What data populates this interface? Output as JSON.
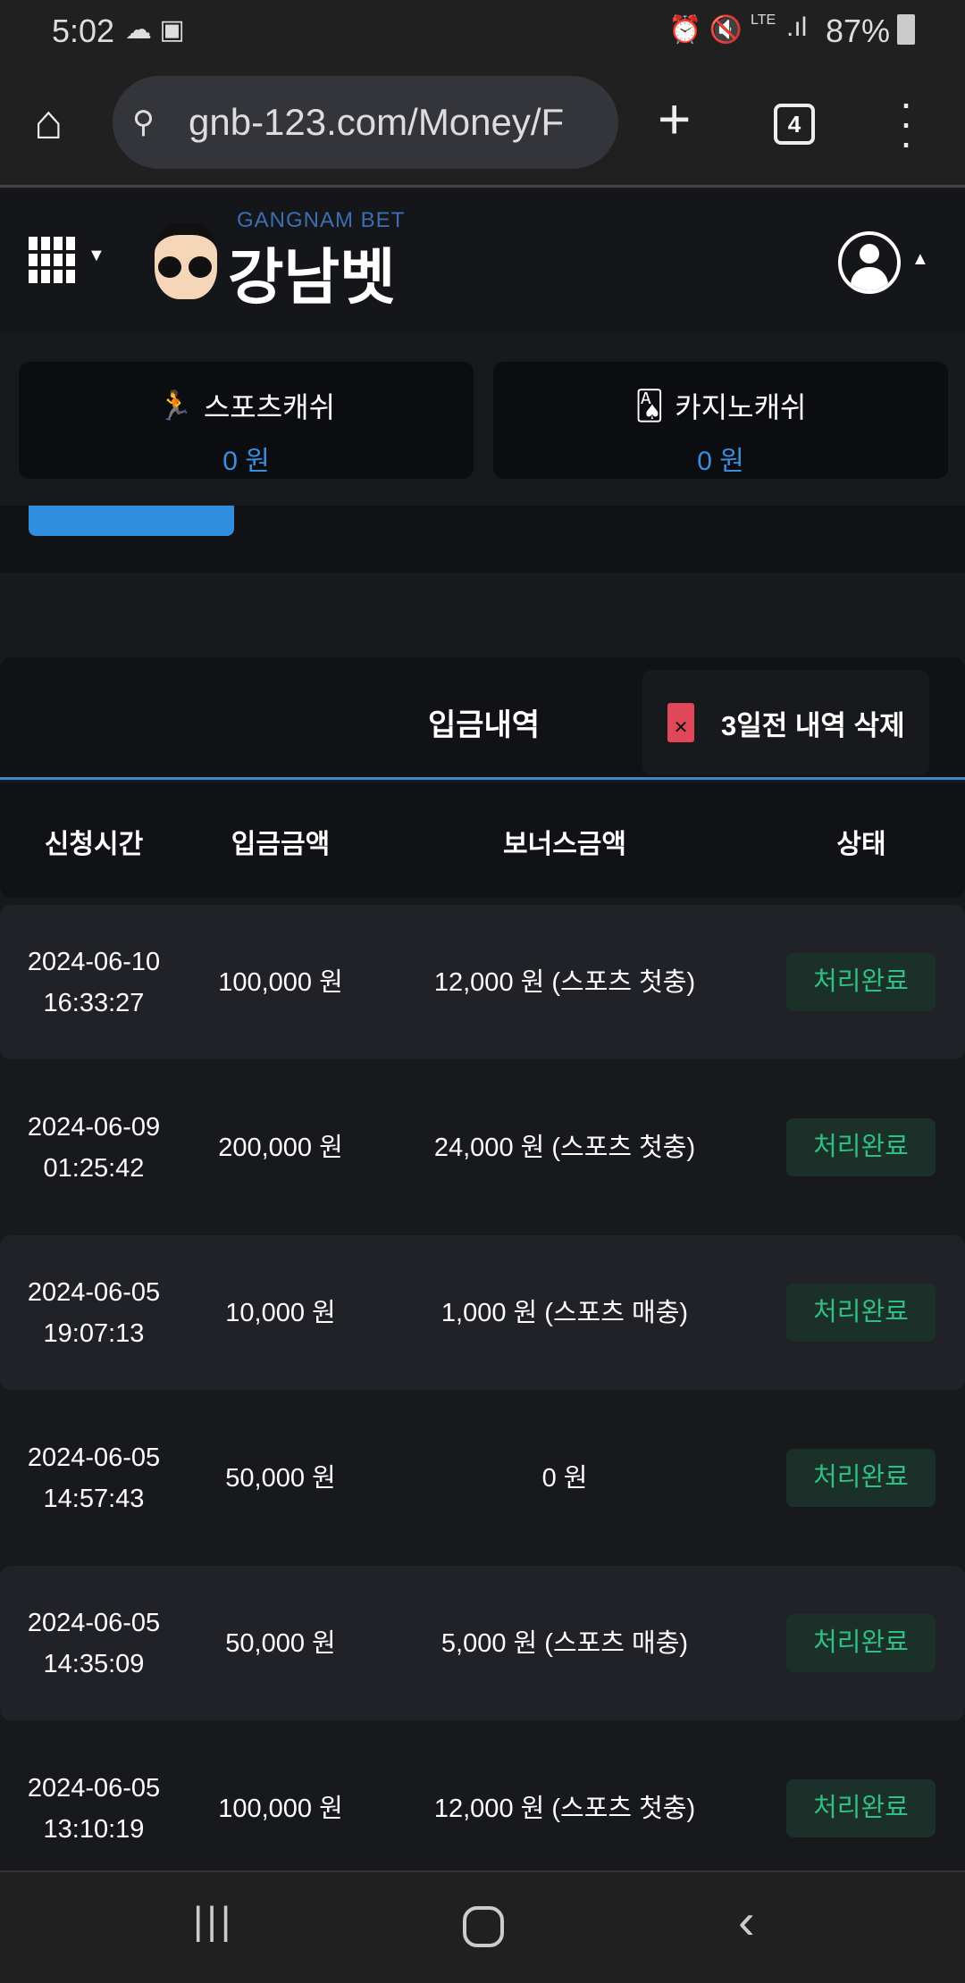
{
  "status_bar": {
    "time": "5:02",
    "network": "LTE",
    "battery": "87%"
  },
  "browser": {
    "url": "gnb-123.com/Money/F",
    "tab_count": "4"
  },
  "header": {
    "logo_subtitle": "GANGNAM BET",
    "logo_title": "강남벳"
  },
  "wallets": [
    {
      "label": "스포츠캐쉬",
      "value": "0 원",
      "icon": "running-person-icon"
    },
    {
      "label": "카지노캐쉬",
      "value": "0 원",
      "icon": "playing-cards-icon"
    }
  ],
  "section": {
    "title": "입금내역",
    "delete_label": "3일전 내역 삭제"
  },
  "table": {
    "headers": [
      "신청시간",
      "입금금액",
      "보너스금액",
      "상태"
    ],
    "rows": [
      {
        "date": "2024-06-10",
        "time": "16:33:27",
        "amount": "100,000 원",
        "bonus": "12,000 원 (스포츠 첫충)",
        "status": "처리완료"
      },
      {
        "date": "2024-06-09",
        "time": "01:25:42",
        "amount": "200,000 원",
        "bonus": "24,000 원 (스포츠 첫충)",
        "status": "처리완료"
      },
      {
        "date": "2024-06-05",
        "time": "19:07:13",
        "amount": "10,000 원",
        "bonus": "1,000 원 (스포츠 매충)",
        "status": "처리완료"
      },
      {
        "date": "2024-06-05",
        "time": "14:57:43",
        "amount": "50,000 원",
        "bonus": "0 원",
        "status": "처리완료"
      },
      {
        "date": "2024-06-05",
        "time": "14:35:09",
        "amount": "50,000 원",
        "bonus": "5,000 원 (스포츠 매충)",
        "status": "처리완료"
      },
      {
        "date": "2024-06-05",
        "time": "13:10:19",
        "amount": "100,000 원",
        "bonus": "12,000 원 (스포츠 첫충)",
        "status": "처리완료"
      }
    ]
  },
  "colors": {
    "accent": "#2f8ee0",
    "status_green": "#2fbf84",
    "delete_red": "#e0485a"
  }
}
